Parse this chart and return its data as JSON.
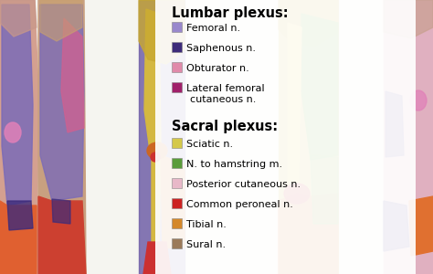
{
  "lumbar_title": "Lumbar plexus:",
  "sacral_title": "Sacral plexus:",
  "lumbar_entries": [
    {
      "label": "Femoral n.",
      "color": "#9988CC"
    },
    {
      "label": "Saphenous n.",
      "color": "#3D2B7A"
    },
    {
      "label": "Obturator n.",
      "color": "#E08AAA"
    },
    {
      "label": "Lateral femoral\ncutaneous n.",
      "color": "#A0206A"
    }
  ],
  "sacral_entries": [
    {
      "label": "Sciatic n.",
      "color": "#D4C84A"
    },
    {
      "label": "N. to hamstring m.",
      "color": "#5A9C3A"
    },
    {
      "label": "Posterior cutaneous n.",
      "color": "#E8B8C8"
    },
    {
      "label": "Common peroneal n.",
      "color": "#CC2222"
    },
    {
      "label": "Tibial n.",
      "color": "#D4882A"
    },
    {
      "label": "Sural n.",
      "color": "#9B7A5A"
    }
  ],
  "bg_color": "#F5F5F0",
  "fig_w": 4.74,
  "fig_h": 3.0,
  "dpi": 100,
  "leg1_skin": "#D4A090",
  "leg1_purple": "#7B6BB8",
  "leg1_orange": "#E06030",
  "leg1_dark_purple": "#3D2B7A",
  "leg1_pink": "#E080B8",
  "leg2_skin": "#C8A080",
  "leg2_purple": "#7B6BB8",
  "leg2_pink": "#D06090",
  "leg2_orange": "#CC4030",
  "leg3_yellow": "#D4B840",
  "leg3_green": "#6AAA3A",
  "leg3_red": "#CC3030",
  "leg3_orange": "#D88030",
  "leg3_skin": "#C8A060",
  "leg4_yellow": "#D4B840",
  "leg4_green": "#6AAA3A",
  "leg4_red": "#CC3030",
  "leg4_orange": "#D88030",
  "leg5_pink": "#E0B0C0",
  "leg5_purple": "#4B3A8A",
  "leg5_orange": "#E07030"
}
